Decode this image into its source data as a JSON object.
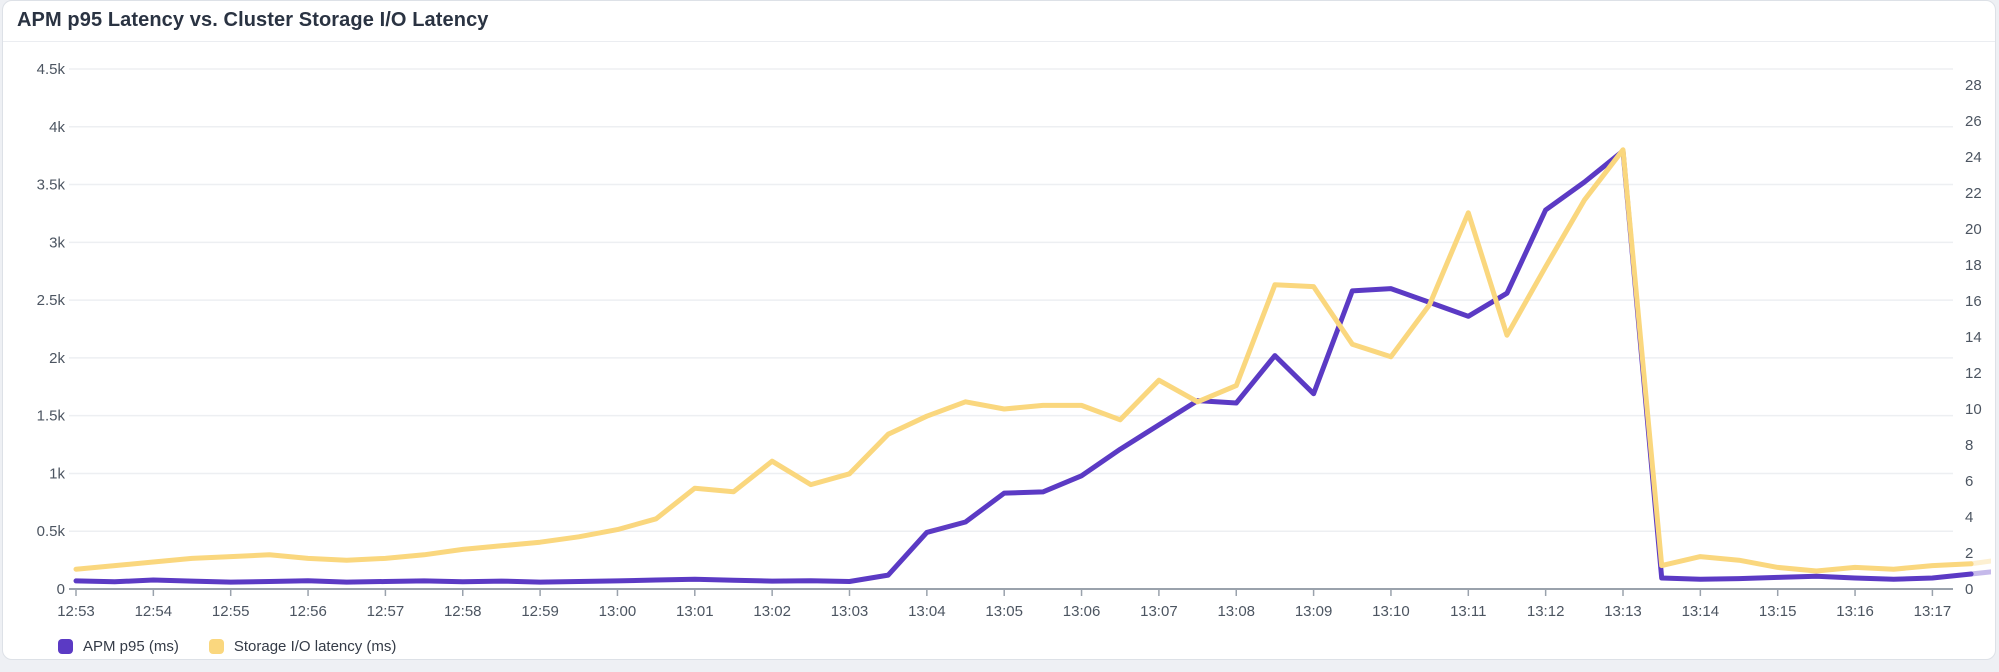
{
  "panel": {
    "title": "APM p95 Latency vs. Cluster Storage I/O Latency"
  },
  "colors": {
    "apm_purple": "#5B3AC4",
    "storage_yellow": "#FAD77E",
    "gridline": "#edeff2",
    "axis_line": "#9aa2ac",
    "tick_text": "#4c5561",
    "title_text": "#2a3342",
    "panel_bg": "#ffffff",
    "page_bg": "#eef0f4",
    "panel_border": "#dde1e7"
  },
  "chart_data": {
    "type": "line",
    "title": "APM p95 Latency vs. Cluster Storage I/O Latency",
    "x_start": "12:53:00",
    "x_step_seconds": 30,
    "x_tick_labels": [
      "12:53",
      "12:54",
      "12:55",
      "12:56",
      "12:57",
      "12:58",
      "12:59",
      "13:00",
      "13:01",
      "13:02",
      "13:03",
      "13:04",
      "13:05",
      "13:06",
      "13:07",
      "13:08",
      "13:09",
      "13:10",
      "13:11",
      "13:12",
      "13:13",
      "13:14",
      "13:15",
      "13:16",
      "13:17"
    ],
    "left_axis": {
      "title": "APM p95 (ms)",
      "min": 0,
      "max": 4500,
      "tick_values": [
        0,
        500,
        1000,
        1500,
        2000,
        2500,
        3000,
        3500,
        4000,
        4500
      ],
      "tick_labels": [
        "0",
        "0.5k",
        "1k",
        "1.5k",
        "2k",
        "2.5k",
        "3k",
        "3.5k",
        "4k",
        "4.5k"
      ]
    },
    "right_axis": {
      "title": "Storage I/O latency (ms)",
      "min": 0,
      "max": 28,
      "tick_values": [
        0,
        2,
        4,
        6,
        8,
        10,
        12,
        14,
        16,
        18,
        20,
        22,
        24,
        26,
        28
      ],
      "tick_labels": [
        "0",
        "2",
        "4",
        "6",
        "8",
        "10",
        "12",
        "14",
        "16",
        "18",
        "20",
        "22",
        "24",
        "26",
        "28"
      ]
    },
    "grid": "horizontal-left-ticks",
    "legend_position": "bottom-left",
    "series": [
      {
        "name": "APM p95 (ms)",
        "axis": "left",
        "color": "#5B3AC4",
        "values": [
          70,
          62,
          78,
          68,
          60,
          65,
          72,
          60,
          65,
          70,
          62,
          68,
          60,
          65,
          70,
          78,
          85,
          75,
          68,
          72,
          65,
          120,
          490,
          580,
          830,
          840,
          980,
          1210,
          1420,
          1630,
          1610,
          2020,
          1690,
          2580,
          2600,
          2480,
          2360,
          2560,
          3280,
          3520,
          3790,
          95,
          85,
          90,
          100,
          110,
          95,
          85,
          95,
          130
        ],
        "partial_tail_end_value": 165
      },
      {
        "name": "Storage I/O latency (ms)",
        "axis": "right",
        "color": "#FAD77E",
        "values": [
          1.1,
          1.3,
          1.5,
          1.7,
          1.8,
          1.9,
          1.7,
          1.6,
          1.7,
          1.9,
          2.2,
          2.4,
          2.6,
          2.9,
          3.3,
          3.9,
          5.6,
          5.4,
          7.1,
          5.8,
          6.4,
          8.6,
          9.6,
          10.4,
          10.0,
          10.2,
          10.2,
          9.4,
          11.6,
          10.4,
          11.3,
          16.9,
          16.8,
          13.6,
          12.9,
          15.8,
          20.9,
          14.1,
          17.9,
          21.6,
          24.4,
          1.3,
          1.8,
          1.6,
          1.2,
          1.0,
          1.2,
          1.1,
          1.3,
          1.4
        ],
        "partial_tail_end_value": 1.7
      }
    ],
    "partial_tail": {
      "note": "last half-minute interval rendered faded",
      "extra_minutes": 0.5,
      "opacity": 0.35
    }
  },
  "legend": {
    "items": [
      {
        "label": "APM p95 (ms)",
        "color": "#5B3AC4"
      },
      {
        "label": "Storage I/O latency (ms)",
        "color": "#FAD77E"
      }
    ]
  }
}
